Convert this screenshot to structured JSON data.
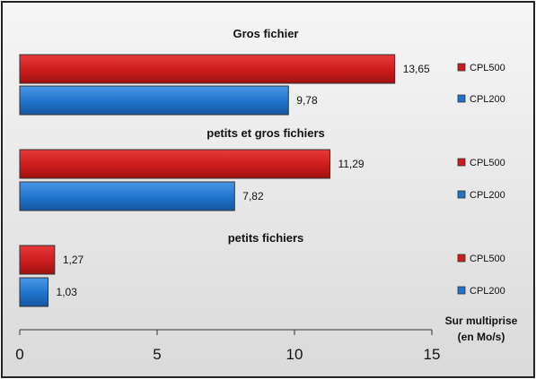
{
  "chart_data": {
    "type": "bar",
    "orientation": "horizontal",
    "groups": [
      {
        "title": "Gros fichier",
        "bars": [
          {
            "series": "CPL500",
            "value": 13.65,
            "label": "13,65"
          },
          {
            "series": "CPL200",
            "value": 9.78,
            "label": "9,78"
          }
        ]
      },
      {
        "title": "petits et gros fichiers",
        "bars": [
          {
            "series": "CPL500",
            "value": 11.29,
            "label": "11,29"
          },
          {
            "series": "CPL200",
            "value": 7.82,
            "label": "7,82"
          }
        ]
      },
      {
        "title": "petits fichiers",
        "bars": [
          {
            "series": "CPL500",
            "value": 1.27,
            "label": "1,27"
          },
          {
            "series": "CPL200",
            "value": 1.03,
            "label": "1,03"
          }
        ]
      }
    ],
    "series_colors": {
      "CPL500": "#cc1c1c",
      "CPL200": "#1f73cc"
    },
    "xlim": [
      0,
      15
    ],
    "x_ticks": [
      "0",
      "5",
      "10",
      "15"
    ],
    "axis_title_lines": [
      "Sur multiprise",
      "(en Mo/s)"
    ],
    "grid": false,
    "legend_placement": "right, per bar"
  }
}
